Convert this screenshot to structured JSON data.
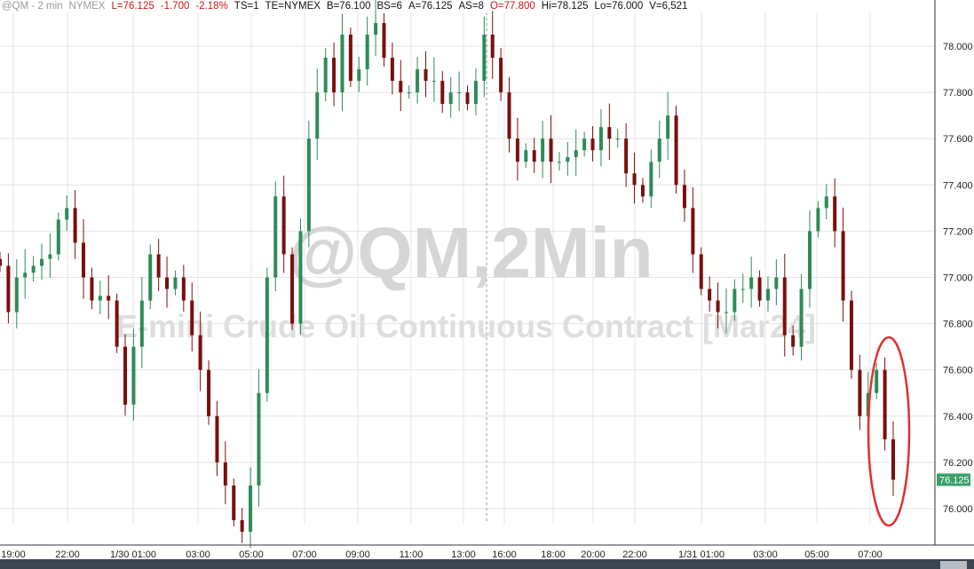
{
  "header": {
    "symbol": "@QM - 2 min",
    "exchange": "NYMEX",
    "last": "L=76.125",
    "change": "-1.700",
    "pct": "-2.18%",
    "ts": "TS=1",
    "te": "TE=NYMEX",
    "bid": "B=76.100",
    "bs": "BS=6",
    "ask": "A=76.125",
    "as": "AS=8",
    "open": "O=77.800",
    "high": "Hi=78.125",
    "low": "Lo=76.000",
    "vol": "V=6,521"
  },
  "watermark": {
    "line1": "@QM,2Min",
    "line2": "E-mini Crude Oil Continuous Contract [Mar24]"
  },
  "colors": {
    "up": "#2e8b57",
    "down": "#7a0f0f",
    "last_badge": "#3aa06a",
    "annotation": "#e03030"
  },
  "chart_data": {
    "type": "candlestick",
    "ylim": [
      75.85,
      78.2
    ],
    "y_ticks": [
      "78.000",
      "77.800",
      "77.600",
      "77.400",
      "77.200",
      "77.000",
      "76.800",
      "76.600",
      "76.400",
      "76.200",
      "76.000"
    ],
    "x_ticks": [
      "19:00",
      "22:00",
      "1/30 01:00",
      "03:00",
      "05:00",
      "07:00",
      "09:00",
      "11:00",
      "13:00",
      "16:00",
      "18:00",
      "20:00",
      "22:00",
      "1/31 01:00",
      "03:00",
      "05:00",
      "07:00"
    ],
    "last_price": "76.125",
    "closes": [
      77.05,
      76.85,
      77.0,
      77.02,
      77.05,
      77.08,
      77.1,
      77.25,
      77.3,
      77.15,
      77.0,
      76.9,
      76.92,
      76.9,
      76.7,
      76.45,
      76.7,
      76.9,
      77.1,
      77.0,
      76.95,
      77.0,
      76.9,
      76.75,
      76.6,
      76.4,
      76.2,
      76.1,
      75.95,
      75.9,
      76.1,
      76.5,
      77.0,
      77.35,
      77.1,
      76.8,
      77.2,
      77.6,
      77.8,
      77.95,
      77.8,
      78.05,
      77.85,
      77.9,
      78.05,
      78.1,
      77.95,
      77.85,
      77.8,
      77.8,
      77.9,
      77.85,
      77.85,
      77.75,
      77.8,
      77.8,
      77.75,
      77.85,
      78.05,
      77.95,
      77.8,
      77.6,
      77.5,
      77.55,
      77.5,
      77.6,
      77.5,
      77.5,
      77.52,
      77.55,
      77.6,
      77.55,
      77.65,
      77.6,
      77.6,
      77.45,
      77.4,
      77.35,
      77.5,
      77.6,
      77.7,
      77.4,
      77.3,
      77.1,
      76.95,
      76.9,
      76.85,
      76.85,
      76.95,
      76.95,
      77.0,
      76.9,
      76.95,
      77.0,
      76.75,
      76.7,
      76.95,
      77.2,
      77.3,
      77.35,
      77.2,
      76.9,
      76.6,
      76.4,
      76.5,
      76.6,
      76.3,
      76.125
    ]
  }
}
